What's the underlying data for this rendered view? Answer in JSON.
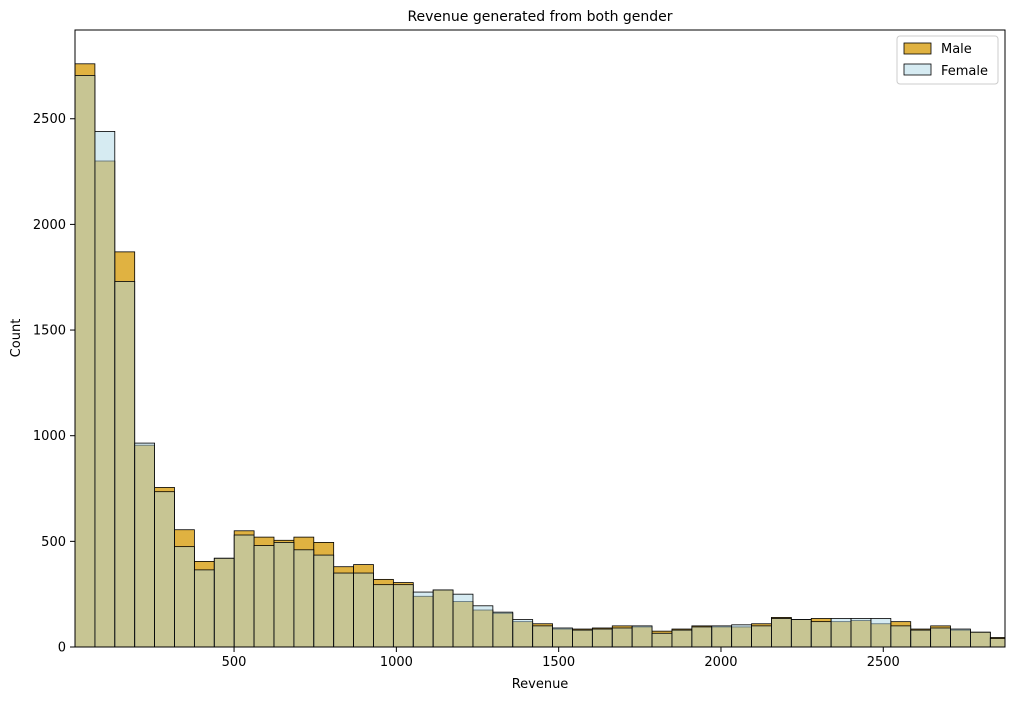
{
  "chart_data": {
    "type": "bar",
    "title": "Revenue generated from both gender",
    "xlabel": "Revenue",
    "ylabel": "Count",
    "xlim": [
      10,
      2875
    ],
    "ylim": [
      0,
      2920
    ],
    "bin_start": 10,
    "bin_width": 61.3,
    "x_ticks": [
      500,
      1000,
      1500,
      2000,
      2500
    ],
    "y_ticks": [
      0,
      500,
      1000,
      1500,
      2000,
      2500
    ],
    "legend_position": "top-right",
    "grid": false,
    "series": [
      {
        "name": "Male",
        "color": "#daa520",
        "values": [
          2760,
          2300,
          1870,
          955,
          755,
          555,
          405,
          420,
          550,
          520,
          505,
          520,
          495,
          380,
          390,
          320,
          305,
          240,
          270,
          215,
          175,
          160,
          120,
          110,
          85,
          85,
          90,
          100,
          95,
          75,
          85,
          100,
          95,
          95,
          110,
          140,
          130,
          135,
          120,
          125,
          110,
          120,
          85,
          100,
          80,
          70,
          45,
          45
        ]
      },
      {
        "name": "Female",
        "color": "#add8e6",
        "values": [
          2705,
          2440,
          1730,
          965,
          735,
          475,
          365,
          420,
          530,
          480,
          495,
          460,
          435,
          350,
          350,
          295,
          295,
          260,
          270,
          250,
          195,
          165,
          130,
          100,
          90,
          80,
          85,
          90,
          100,
          65,
          80,
          95,
          100,
          105,
          100,
          135,
          130,
          120,
          135,
          135,
          135,
          100,
          80,
          90,
          85,
          70,
          40,
          55
        ]
      }
    ]
  }
}
